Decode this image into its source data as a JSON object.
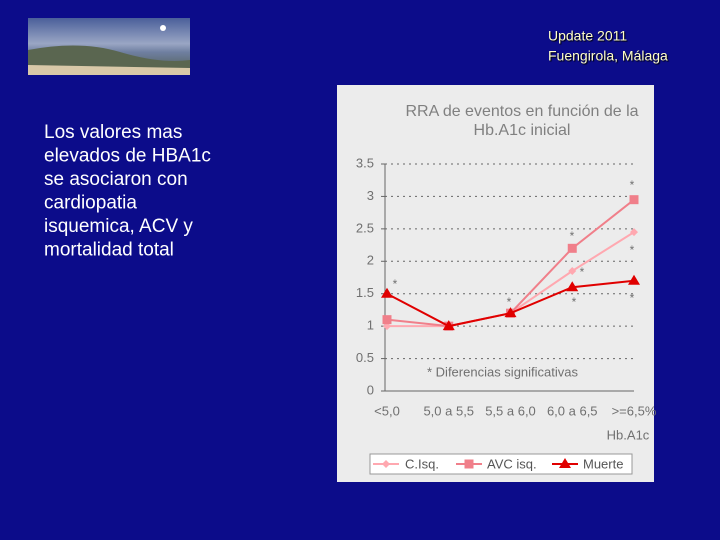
{
  "header": {
    "lines": [
      "Update 2011",
      "Fuengirola, Málaga"
    ]
  },
  "body": {
    "lines": [
      "Los valores mas",
      "elevados de HBA1c",
      "se asociaron con",
      "cardiopatia",
      "isquemica, ACV y",
      "mortalidad total"
    ]
  },
  "chart_data": {
    "type": "line",
    "title": [
      "RRA de eventos en función de la",
      "Hb.A1c inicial"
    ],
    "x_label": "Hb.A1c",
    "categories": [
      "<5,0",
      "5,0 a 5,5",
      "5,5 a 6,0",
      "6,0 a 6,5",
      ">=6,5%"
    ],
    "series": [
      {
        "name": "C.Isq.",
        "color": "#ffa8b0",
        "marker": "diamond",
        "values": [
          1.0,
          1.0,
          1.2,
          1.85,
          2.45
        ]
      },
      {
        "name": "AVC isq.",
        "color": "#f07f8a",
        "marker": "square",
        "values": [
          1.1,
          1.0,
          1.2,
          2.2,
          2.95
        ]
      },
      {
        "name": "Muerte",
        "color": "#e00000",
        "marker": "triangle",
        "values": [
          1.5,
          1.0,
          1.2,
          1.6,
          1.7
        ]
      }
    ],
    "ylim": [
      0,
      3.5
    ],
    "yticks": [
      0,
      0.5,
      1,
      1.5,
      2,
      2.5,
      3,
      3.5
    ],
    "grid": true,
    "annotation": "*  Diferencias significativas",
    "asterisks": [
      "*",
      "*",
      "*",
      "*",
      "*",
      "*",
      "*",
      "*"
    ]
  }
}
